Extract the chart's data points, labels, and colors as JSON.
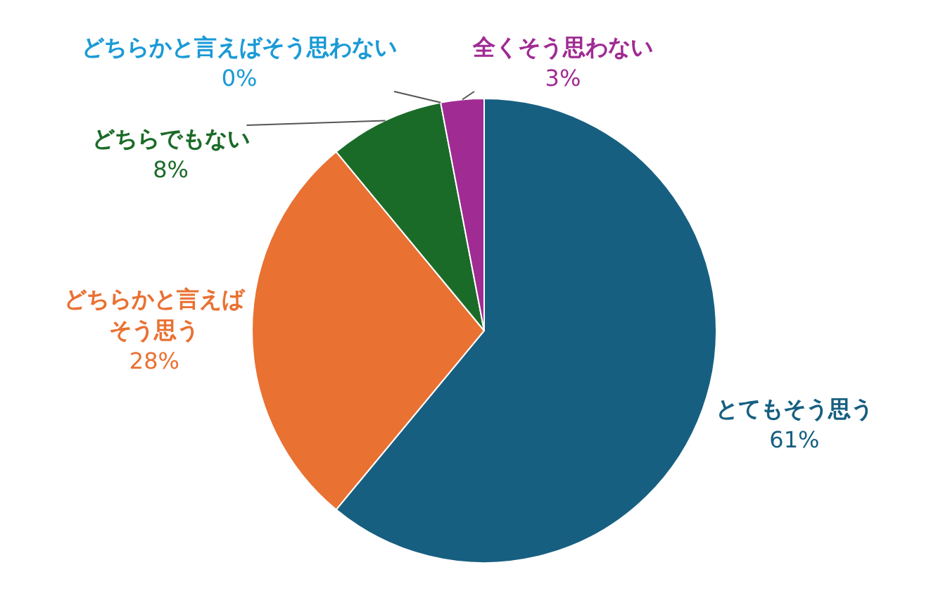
{
  "chart_data": {
    "type": "pie",
    "categories": [
      "とてもそう思う",
      "どちらかと言えばそう思う",
      "どちらでもない",
      "どちらかと言えばそう思わない",
      "全くそう思わない"
    ],
    "values": [
      61,
      28,
      8,
      0,
      3
    ],
    "value_labels": [
      "61%",
      "28%",
      "8%",
      "0%",
      "3%"
    ],
    "colors": [
      "#175f80",
      "#e97132",
      "#1b6b28",
      "#1a9ad6",
      "#a02b93"
    ]
  }
}
